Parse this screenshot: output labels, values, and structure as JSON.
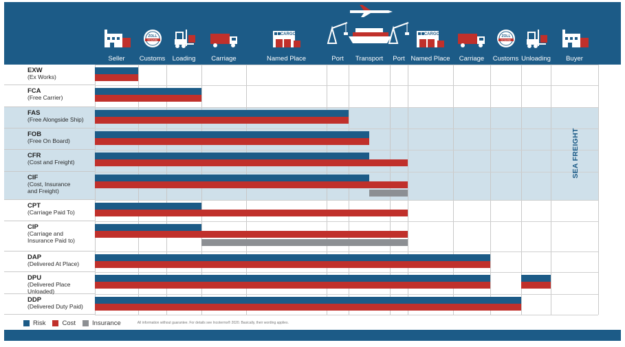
{
  "colors": {
    "header": "#1c5b87",
    "risk": "#1c5b87",
    "cost": "#c0302b",
    "insurance": "#8c8f93",
    "sea": "#cfe0ea"
  },
  "stages": [
    {
      "label": "Seller",
      "icon": "factory-icon"
    },
    {
      "label": "Customs",
      "icon": "customs-stamp-icon"
    },
    {
      "label": "Loading",
      "icon": "forklift-icon"
    },
    {
      "label": "Carriage",
      "icon": "truck-icon"
    },
    {
      "label": "Named Place",
      "icon": "cargo-warehouse-icon"
    },
    {
      "label": "Port",
      "icon": "crane-icon"
    },
    {
      "label": "Transport",
      "icon": "ship-plane-icon"
    },
    {
      "label": "Port",
      "icon": "crane-icon"
    },
    {
      "label": "Named Place",
      "icon": "cargo-warehouse-icon"
    },
    {
      "label": "Carriage",
      "icon": "truck-icon"
    },
    {
      "label": "Customs",
      "icon": "customs-stamp-icon"
    },
    {
      "label": "Unloading",
      "icon": "forklift-icon"
    },
    {
      "label": "Buyer",
      "icon": "factory-icon"
    }
  ],
  "icon_text": {
    "cargo": "CARGO",
    "customs_top": "ZOLL",
    "customs_bottom": "DOUANE"
  },
  "terms": [
    {
      "code": "EXW",
      "desc": [
        "(Ex Works)"
      ],
      "risk": [
        0,
        1
      ],
      "cost": [
        0,
        1
      ],
      "insurance": null,
      "sea": false
    },
    {
      "code": "FCA",
      "desc": [
        "(Free Carrier)"
      ],
      "risk": [
        0,
        3
      ],
      "cost": [
        0,
        3
      ],
      "insurance": null,
      "sea": false
    },
    {
      "code": "FAS",
      "desc": [
        "(Free Alongside Ship)"
      ],
      "risk": [
        0,
        6
      ],
      "cost": [
        0,
        6
      ],
      "insurance": null,
      "sea": true
    },
    {
      "code": "FOB",
      "desc": [
        "(Free On Board)"
      ],
      "risk": [
        0,
        6.5
      ],
      "cost": [
        0,
        6.5
      ],
      "insurance": null,
      "sea": true
    },
    {
      "code": "CFR",
      "desc": [
        "(Cost and Freight)"
      ],
      "risk": [
        0,
        6.5
      ],
      "cost": [
        0,
        8
      ],
      "insurance": null,
      "sea": true
    },
    {
      "code": "CIF",
      "desc": [
        "(Cost, Insurance",
        " and Freight)"
      ],
      "risk": [
        0,
        6.5
      ],
      "cost": [
        0,
        8
      ],
      "insurance": [
        6.5,
        8
      ],
      "sea": true
    },
    {
      "code": "CPT",
      "desc": [
        "(Carriage Paid To)"
      ],
      "risk": [
        0,
        3
      ],
      "cost": [
        0,
        8
      ],
      "insurance": null,
      "sea": false
    },
    {
      "code": "CIP",
      "desc": [
        "(Carriage and",
        " Insurance Paid to)"
      ],
      "risk": [
        0,
        3
      ],
      "cost": [
        0,
        8
      ],
      "insurance": [
        3,
        8
      ],
      "sea": false
    },
    {
      "code": "DAP",
      "desc": [
        "(Delivered At Place)"
      ],
      "risk": [
        0,
        10
      ],
      "cost": [
        0,
        10
      ],
      "insurance": null,
      "sea": false
    },
    {
      "code": "DPU",
      "desc": [
        "(Delivered Place",
        "Unloaded)"
      ],
      "risk": [
        0,
        10
      ],
      "cost": [
        0,
        10
      ],
      "risk_extra": [
        11,
        12
      ],
      "cost_extra": [
        11,
        12
      ],
      "insurance": null,
      "sea": false
    },
    {
      "code": "DDP",
      "desc": [
        "(Delivered Duty Paid)"
      ],
      "risk": [
        0,
        11
      ],
      "cost": [
        0,
        11
      ],
      "insurance": null,
      "sea": false
    }
  ],
  "sea_label": "SEA FREIGHT",
  "legend": [
    {
      "label": "Risk",
      "color": "#1c5b87"
    },
    {
      "label": "Cost",
      "color": "#c0302b"
    },
    {
      "label": "Insurance",
      "color": "#8c8f93"
    }
  ],
  "disclaimer": "All information without guarantee. For details see Incoterms® 2020. Basically, their wording applies."
}
